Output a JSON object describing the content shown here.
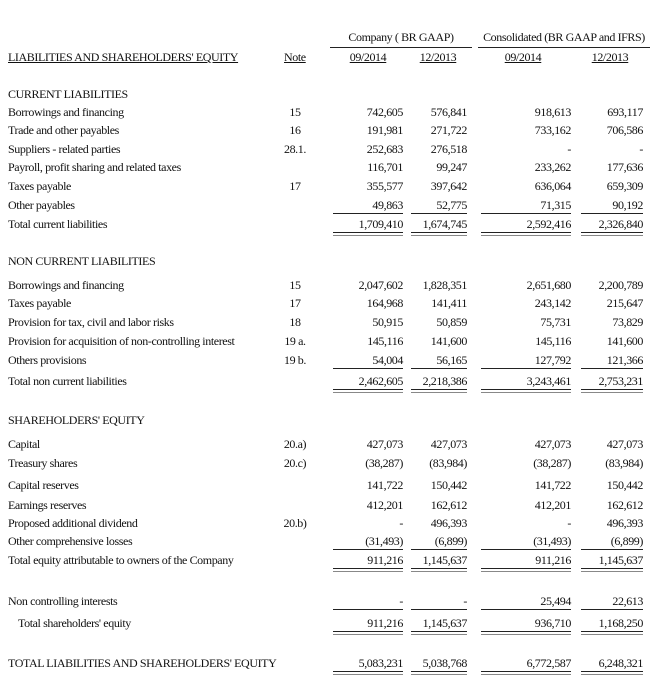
{
  "header": {
    "title": "LIABILITIES AND SHAREHOLDERS' EQUITY",
    "note_label": "Note",
    "groups": [
      "Company ( BR GAAP)",
      "Consolidated (BR GAAP and  IFRS)"
    ],
    "periods": [
      "09/2014",
      "12/2013",
      "09/2014",
      "12/2013"
    ]
  },
  "sections": [
    {
      "title": "CURRENT LIABILITIES",
      "rows": [
        {
          "label": "Borrowings and financing",
          "note": "15",
          "values": [
            "742,605",
            "576,841",
            "918,613",
            "693,117"
          ]
        },
        {
          "label": "Trade and other payables",
          "note": "16",
          "values": [
            "191,981",
            "271,722",
            "733,162",
            "706,586"
          ]
        },
        {
          "label": "Suppliers - related parties",
          "note": "28.1.",
          "values": [
            "252,683",
            "276,518",
            "-",
            "-"
          ]
        },
        {
          "label": "Payroll, profit sharing and related taxes",
          "note": "",
          "values": [
            "116,701",
            "99,247",
            "233,262",
            "177,636"
          ]
        },
        {
          "label": "Taxes payable",
          "note": "17",
          "values": [
            "355,577",
            "397,642",
            "636,064",
            "659,309"
          ]
        },
        {
          "label": "Other payables",
          "note": "",
          "values": [
            "49,863",
            "52,775",
            "71,315",
            "90,192"
          ]
        }
      ],
      "total": {
        "label": "Total current liabilities",
        "values": [
          "1,709,410",
          "1,674,745",
          "2,592,416",
          "2,326,840"
        ]
      }
    },
    {
      "title": "NON CURRENT LIABILITIES",
      "rows": [
        {
          "label": "Borrowings and financing",
          "note": "15",
          "values": [
            "2,047,602",
            "1,828,351",
            "2,651,680",
            "2,200,789"
          ]
        },
        {
          "label": "Taxes payable",
          "note": "17",
          "values": [
            "164,968",
            "141,411",
            "243,142",
            "215,647"
          ]
        },
        {
          "label": "Provision for tax, civil and labor risks",
          "note": "18",
          "values": [
            "50,915",
            "50,859",
            "75,731",
            "73,829"
          ]
        },
        {
          "label": "Provision for acquisition of non-controlling interest",
          "note": "19 a.",
          "values": [
            "145,116",
            "141,600",
            "145,116",
            "141,600"
          ]
        },
        {
          "label": "Others provisions",
          "note": "19 b.",
          "values": [
            "54,004",
            "56,165",
            "127,792",
            "121,366"
          ]
        }
      ],
      "total": {
        "label": "Total non current liabilities",
        "values": [
          "2,462,605",
          "2,218,386",
          "3,243,461",
          "2,753,231"
        ]
      }
    },
    {
      "title": "SHAREHOLDERS' EQUITY",
      "rows": [
        {
          "label": "Capital",
          "note": "20.a)",
          "values": [
            "427,073",
            "427,073",
            "427,073",
            "427,073"
          ]
        },
        {
          "label": "Treasury shares",
          "note": "20.c)",
          "values": [
            "(38,287)",
            "(83,984)",
            "(38,287)",
            "(83,984)"
          ]
        },
        {
          "label": "Capital reserves",
          "note": "",
          "values": [
            "141,722",
            "150,442",
            "141,722",
            "150,442"
          ]
        },
        {
          "label": "Earnings reserves",
          "note": "",
          "values": [
            "412,201",
            "162,612",
            "412,201",
            "162,612"
          ]
        },
        {
          "label": "Proposed additional dividend",
          "note": "20.b)",
          "values": [
            "-",
            "496,393",
            "-",
            "496,393"
          ]
        },
        {
          "label": "Other comprehensive losses",
          "note": "",
          "values": [
            "(31,493)",
            "(6,899)",
            "(31,493)",
            "(6,899)"
          ]
        }
      ],
      "total": {
        "label": "Total equity attributable to owners of the Company",
        "values": [
          "911,216",
          "1,145,637",
          "911,216",
          "1,145,637"
        ]
      }
    }
  ],
  "non_controlling": {
    "label": "Non controlling interests",
    "values": [
      "-",
      "-",
      "25,494",
      "22,613"
    ]
  },
  "total_equity": {
    "label": "Total shareholders' equity",
    "values": [
      "911,216",
      "1,145,637",
      "936,710",
      "1,168,250"
    ]
  },
  "grand_total": {
    "label": "TOTAL LIABILITIES AND SHAREHOLDERS' EQUITY",
    "values": [
      "5,083,231",
      "5,038,768",
      "6,772,587",
      "6,248,321"
    ]
  }
}
